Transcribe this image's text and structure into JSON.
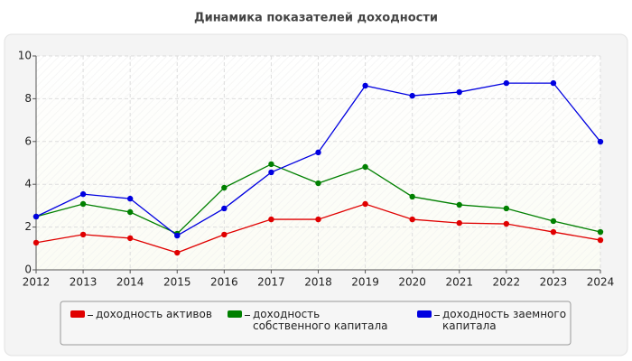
{
  "chart_data": {
    "type": "line",
    "title": "Динамика показателей доходности",
    "x": [
      2012,
      2013,
      2014,
      2015,
      2016,
      2017,
      2018,
      2019,
      2020,
      2021,
      2022,
      2023,
      2024
    ],
    "xlim": [
      2012,
      2024
    ],
    "xticks": [
      2012,
      2013,
      2014,
      2015,
      2016,
      2017,
      2018,
      2019,
      2020,
      2021,
      2022,
      2023,
      2024
    ],
    "ylim": [
      0,
      10
    ],
    "yticks": [
      0,
      2,
      4,
      6,
      8,
      10
    ],
    "grid": true,
    "legend": "bottom",
    "series": [
      {
        "name": "доходность активов",
        "color": "#e00000",
        "values": [
          1.27,
          1.65,
          1.48,
          0.8,
          1.65,
          2.36,
          2.36,
          3.08,
          2.36,
          2.19,
          2.15,
          1.77,
          1.39
        ]
      },
      {
        "name": "доходность собственного капитала",
        "color": "#008000",
        "values": [
          2.49,
          3.08,
          2.7,
          1.69,
          3.84,
          4.94,
          4.05,
          4.81,
          3.42,
          3.04,
          2.87,
          2.28,
          1.77
        ]
      },
      {
        "name": "доходность заемного капитала",
        "color": "#0000e0",
        "values": [
          2.49,
          3.54,
          3.33,
          1.6,
          2.87,
          4.56,
          5.49,
          8.61,
          8.14,
          8.31,
          8.73,
          8.73,
          5.99
        ]
      }
    ]
  }
}
